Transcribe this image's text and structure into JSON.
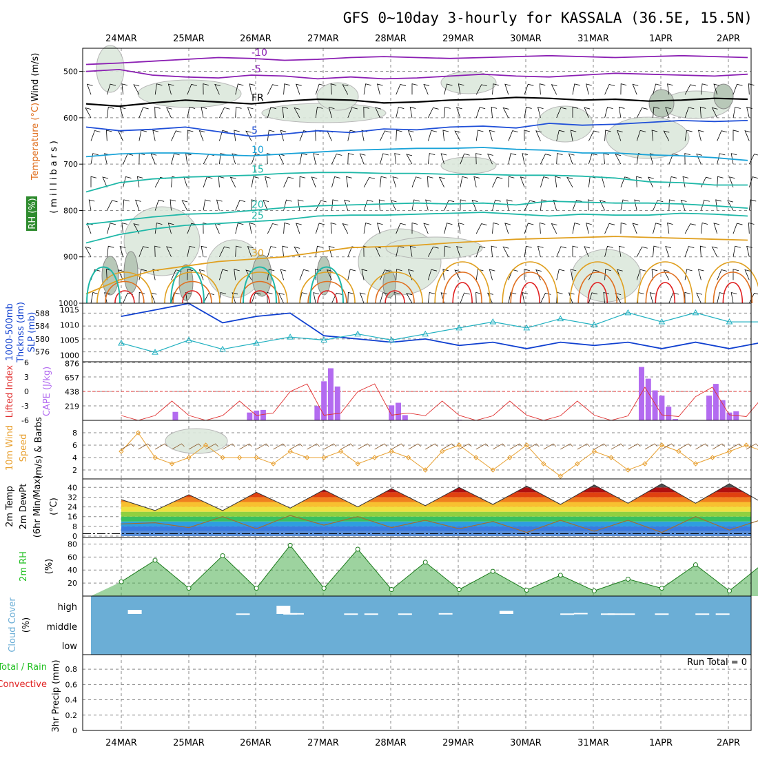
{
  "title": "GFS 0~10day 3-hourly for KASSALA (36.5E, 15.5N)",
  "date_labels": [
    "24MAR",
    "25MAR",
    "26MAR",
    "27MAR",
    "28MAR",
    "29MAR",
    "30MAR",
    "31MAR",
    "1APR",
    "2APR"
  ],
  "colors": {
    "wind_barb": "#000000",
    "temp_neg": "#8b1fb3",
    "temp_fr": "#000000",
    "temp_5": "#1f4fd8",
    "temp_10": "#1aa3d8",
    "temp_15_25": "#1fb8a8",
    "temp_30": "#e0a020",
    "temp_35": "#e07020",
    "temp_40": "#e02020",
    "rh": "#2e8b57",
    "slp": "#20b0c0",
    "thickness": "#1040d0",
    "lifted_index": "#e03030",
    "cape": "#b36bf0",
    "wind10": "#e8a030",
    "rh2m": "#22c022",
    "cloud": "#6baed6"
  },
  "labels": {
    "upper_wind": "Wind (m/s)",
    "upper_temp": "Temperature (°C)",
    "upper_rh": "RH (%)",
    "upper_mb": "(millibars)",
    "fr": "FR",
    "thickness": "1000-500mb",
    "thickness2": "Thcknss (dm)",
    "slp": "SLP (mb)",
    "li": "Lifted Index",
    "cape": "CAPE (J/kg)",
    "wind10a": "10m Wind",
    "wind10b": "Speed",
    "wind10c": "(m/s) & Barbs",
    "t2a": "2m Temp",
    "t2b": "2m DewPt",
    "t2c": "(6hr Min/Max)",
    "t2unit": "(°C)",
    "rh2": "2m RH",
    "rh2unit": "(%)",
    "cloud": "Cloud Cover",
    "cloudunit": "(%)",
    "cloud_high": "high",
    "cloud_middle": "middle",
    "cloud_low": "low",
    "precip_a": "Total / Rain",
    "precip_b": "Convective",
    "precip_c": "3hr Precip (mm)",
    "run_total": "Run Total = 0"
  },
  "chart_data": [
    {
      "type": "line",
      "name": "upper-air cross section",
      "yaxis": {
        "label": "(millibars)",
        "ticks": [
          500,
          600,
          700,
          800,
          900,
          1000
        ],
        "range": [
          450,
          1000
        ],
        "inverted": true
      },
      "contours": [
        {
          "label": "-10",
          "level": -10,
          "pressure": [
            485,
            482,
            478,
            474,
            470,
            472,
            476,
            474,
            470,
            468,
            470,
            472,
            470,
            468,
            466,
            468,
            470,
            468,
            466,
            468,
            470
          ]
        },
        {
          "label": "-5",
          "level": -5,
          "pressure": [
            500,
            496,
            508,
            512,
            514,
            508,
            510,
            516,
            512,
            516,
            514,
            510,
            506,
            510,
            512,
            508,
            504,
            506,
            508,
            510,
            506
          ]
        },
        {
          "label": "FR",
          "level": 0,
          "pressure": [
            570,
            575,
            568,
            562,
            566,
            570,
            564,
            560,
            562,
            568,
            566,
            562,
            560,
            556,
            558,
            562,
            560,
            564,
            562,
            558,
            560
          ]
        },
        {
          "label": "5",
          "level": 5,
          "pressure": [
            620,
            628,
            625,
            620,
            630,
            640,
            635,
            628,
            632,
            624,
            626,
            620,
            618,
            622,
            612,
            616,
            614,
            610,
            606,
            608,
            606
          ]
        },
        {
          "label": "10",
          "level": 10,
          "pressure": [
            684,
            678,
            676,
            676,
            680,
            682,
            678,
            674,
            670,
            668,
            666,
            666,
            664,
            668,
            670,
            676,
            676,
            680,
            682,
            686,
            692
          ]
        },
        {
          "label": "15",
          "level": 15,
          "pressure": [
            760,
            740,
            732,
            728,
            726,
            724,
            720,
            718,
            718,
            720,
            720,
            722,
            722,
            724,
            724,
            726,
            730,
            738,
            740,
            745,
            745
          ]
        },
        {
          "label": "20",
          "level": 20,
          "pressure": [
            830,
            822,
            814,
            808,
            806,
            800,
            794,
            790,
            788,
            786,
            784,
            786,
            784,
            788,
            780,
            782,
            784,
            784,
            786,
            790,
            795
          ]
        },
        {
          "label": "25",
          "level": 25,
          "pressure": [
            870,
            852,
            840,
            832,
            828,
            824,
            820,
            812,
            810,
            810,
            808,
            806,
            804,
            808,
            812,
            808,
            810,
            810,
            806,
            808,
            812
          ]
        },
        {
          "label": "30",
          "level": 30,
          "pressure": [
            980,
            950,
            930,
            920,
            910,
            905,
            900,
            890,
            880,
            878,
            875,
            870,
            866,
            862,
            860,
            858,
            856,
            858,
            860,
            862,
            864
          ]
        }
      ],
      "wind_barbs": "3-hourly barbs at 50mb levels from 550 to 1000 mb"
    },
    {
      "type": "line",
      "name": "thickness and SLP",
      "series": [
        {
          "name": "1000-500mb Thcknss (dm)",
          "axis": "left",
          "ticks": [
            576,
            580,
            584,
            588
          ],
          "x": [
            0,
            0.5,
            1,
            1.5,
            2,
            2.5,
            3,
            3.5,
            4,
            4.5,
            5,
            5.5,
            6,
            6.5,
            7,
            7.5,
            8,
            8.5,
            9,
            9.5,
            10
          ],
          "values": [
            587,
            589,
            591,
            585,
            587,
            588,
            581,
            580,
            579,
            580,
            578,
            579,
            577,
            579,
            578,
            579,
            577,
            579,
            577,
            579,
            581
          ]
        },
        {
          "name": "SLP (mb)",
          "axis": "right",
          "ticks": [
            1000,
            1005,
            1010,
            1015
          ],
          "x": [
            0,
            0.5,
            1,
            1.5,
            2,
            2.5,
            3,
            3.5,
            4,
            4.5,
            5,
            5.5,
            6,
            6.5,
            7,
            7.5,
            8,
            8.5,
            9,
            9.5,
            10
          ],
          "values": [
            1004,
            1001,
            1005,
            1002,
            1004,
            1006,
            1005,
            1007,
            1005,
            1007,
            1009,
            1011,
            1009,
            1012,
            1010,
            1014,
            1011,
            1014,
            1011,
            1011,
            1010
          ]
        }
      ]
    },
    {
      "type": "bar",
      "name": "Lifted Index and CAPE",
      "li_ticks": [
        -6,
        -3,
        0,
        3,
        6
      ],
      "cape_ticks": [
        219,
        438,
        657,
        876
      ],
      "x": [
        0.8,
        1.9,
        2.0,
        2.1,
        2.2,
        2.9,
        3.0,
        3.1,
        3.2,
        4.0,
        4.1,
        4.2,
        5.0,
        7.7,
        7.8,
        7.9,
        8.0,
        8.1,
        8.2,
        8.7,
        8.8,
        8.9,
        9.0,
        9.1
      ],
      "cape_values": [
        130,
        120,
        150,
        160,
        0,
        220,
        600,
        800,
        520,
        230,
        270,
        80,
        10,
        820,
        640,
        460,
        380,
        210,
        20,
        380,
        560,
        310,
        120,
        140
      ]
    },
    {
      "type": "line",
      "name": "10m Wind Speed (m/s) & Barbs",
      "yticks": [
        2,
        4,
        6,
        8
      ],
      "x": [
        0,
        0.25,
        0.5,
        0.75,
        1,
        1.25,
        1.5,
        1.75,
        2,
        2.25,
        2.5,
        2.75,
        3,
        3.25,
        3.5,
        3.75,
        4,
        4.25,
        4.5,
        4.75,
        5,
        5.25,
        5.5,
        5.75,
        6,
        6.25,
        6.5,
        6.75,
        7,
        7.25,
        7.5,
        7.75,
        8,
        8.25,
        8.5,
        8.75,
        9,
        9.25,
        9.5,
        9.75,
        10
      ],
      "values": [
        5,
        8,
        4,
        3,
        4,
        6,
        4,
        4,
        4,
        3,
        5,
        4,
        4,
        5,
        3,
        4,
        5,
        4,
        2,
        5,
        6,
        4,
        2,
        4,
        6,
        3,
        1,
        3,
        5,
        4,
        2,
        3,
        6,
        5,
        3,
        4,
        5,
        6,
        5,
        4,
        5
      ]
    },
    {
      "type": "area",
      "name": "2m Temp and DewPt",
      "yticks": [
        0,
        8,
        16,
        24,
        32,
        40
      ],
      "temp_x": [
        0,
        0.5,
        1,
        1.5,
        2,
        2.5,
        3,
        3.5,
        4,
        4.5,
        5,
        5.5,
        6,
        6.5,
        7,
        7.5,
        8,
        8.5,
        9,
        9.5,
        10
      ],
      "temp": [
        30,
        21,
        34,
        21,
        36,
        23,
        38,
        24,
        39,
        25,
        40,
        26,
        41,
        26,
        42,
        27,
        43,
        27,
        43,
        27,
        31
      ],
      "dewpt": [
        10,
        11,
        7,
        16,
        6,
        17,
        9,
        16,
        7,
        13,
        6,
        12,
        3,
        13,
        4,
        13,
        3,
        16,
        5,
        14,
        15
      ]
    },
    {
      "type": "area",
      "name": "2m RH (%)",
      "yticks": [
        20,
        40,
        60,
        80
      ],
      "x": [
        0,
        0.5,
        1,
        1.5,
        2,
        2.5,
        3,
        3.5,
        4,
        4.5,
        5,
        5.5,
        6,
        6.5,
        7,
        7.5,
        8,
        8.5,
        9,
        9.5,
        10
      ],
      "values": [
        22,
        55,
        12,
        62,
        12,
        78,
        12,
        72,
        10,
        52,
        10,
        38,
        9,
        32,
        8,
        26,
        12,
        48,
        8,
        50,
        36
      ]
    },
    {
      "type": "bar",
      "name": "Cloud Cover (%)",
      "levels": [
        "high",
        "middle",
        "low"
      ],
      "high_x": [
        0.2,
        1.8,
        2.4,
        2.5,
        2.6,
        3.4,
        3.7,
        4.2,
        4.8,
        5.7,
        6.6,
        6.8,
        7.2,
        7.3,
        7.5,
        8.0,
        8.6,
        8.9
      ],
      "high_values": [
        40,
        5,
        80,
        8,
        8,
        5,
        5,
        5,
        8,
        30,
        5,
        10,
        5,
        5,
        5,
        5,
        5,
        5
      ]
    },
    {
      "type": "line",
      "name": "3hr Precip (mm)",
      "yticks": [
        0,
        0.2,
        0.4,
        0.6,
        0.8
      ],
      "values": []
    }
  ]
}
